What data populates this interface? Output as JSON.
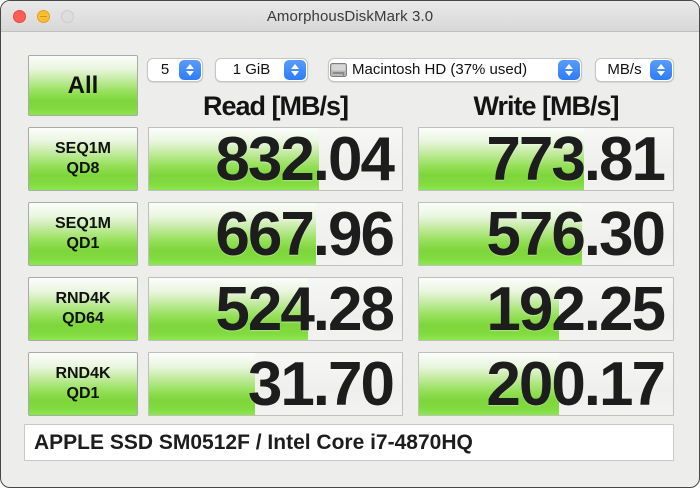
{
  "window": {
    "title": "AmorphousDiskMark 3.0"
  },
  "controls": {
    "all_button": "All",
    "run_count": "5",
    "test_size": "1 GiB",
    "volume": "Macintosh HD (37% used)",
    "unit": "MB/s"
  },
  "headers": {
    "read": "Read [MB/s]",
    "write": "Write [MB/s]"
  },
  "rows": [
    {
      "label_top": "SEQ1M",
      "label_bottom": "QD8",
      "read": "832.04",
      "write": "773.81",
      "read_fill": 67,
      "write_fill": 65
    },
    {
      "label_top": "SEQ1M",
      "label_bottom": "QD1",
      "read": "667.96",
      "write": "576.30",
      "read_fill": 66,
      "write_fill": 64
    },
    {
      "label_top": "RND4K",
      "label_bottom": "QD64",
      "read": "524.28",
      "write": "192.25",
      "read_fill": 63,
      "write_fill": 55
    },
    {
      "label_top": "RND4K",
      "label_bottom": "QD1",
      "read": "31.70",
      "write": "200.17",
      "read_fill": 42,
      "write_fill": 55
    }
  ],
  "footer": {
    "device_info": "APPLE SSD SM0512F / Intel Core i7-4870HQ"
  },
  "colors": {
    "accent_green": "#7ed63b",
    "stepper_blue": "#2e7cf6"
  }
}
